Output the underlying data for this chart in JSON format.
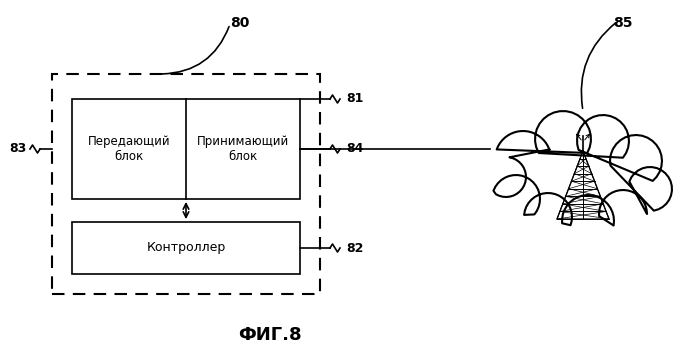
{
  "title": "ФИГ.8",
  "label_80": "80",
  "label_81": "81",
  "label_82": "82",
  "label_83": "83",
  "label_84": "84",
  "label_85": "85",
  "text_tx": "Передающий\nблок",
  "text_rx": "Принимающий\nблок",
  "text_ctrl": "Контроллер",
  "bg_color": "#ffffff",
  "line_color": "#000000",
  "fig_width": 7.0,
  "fig_height": 3.64
}
